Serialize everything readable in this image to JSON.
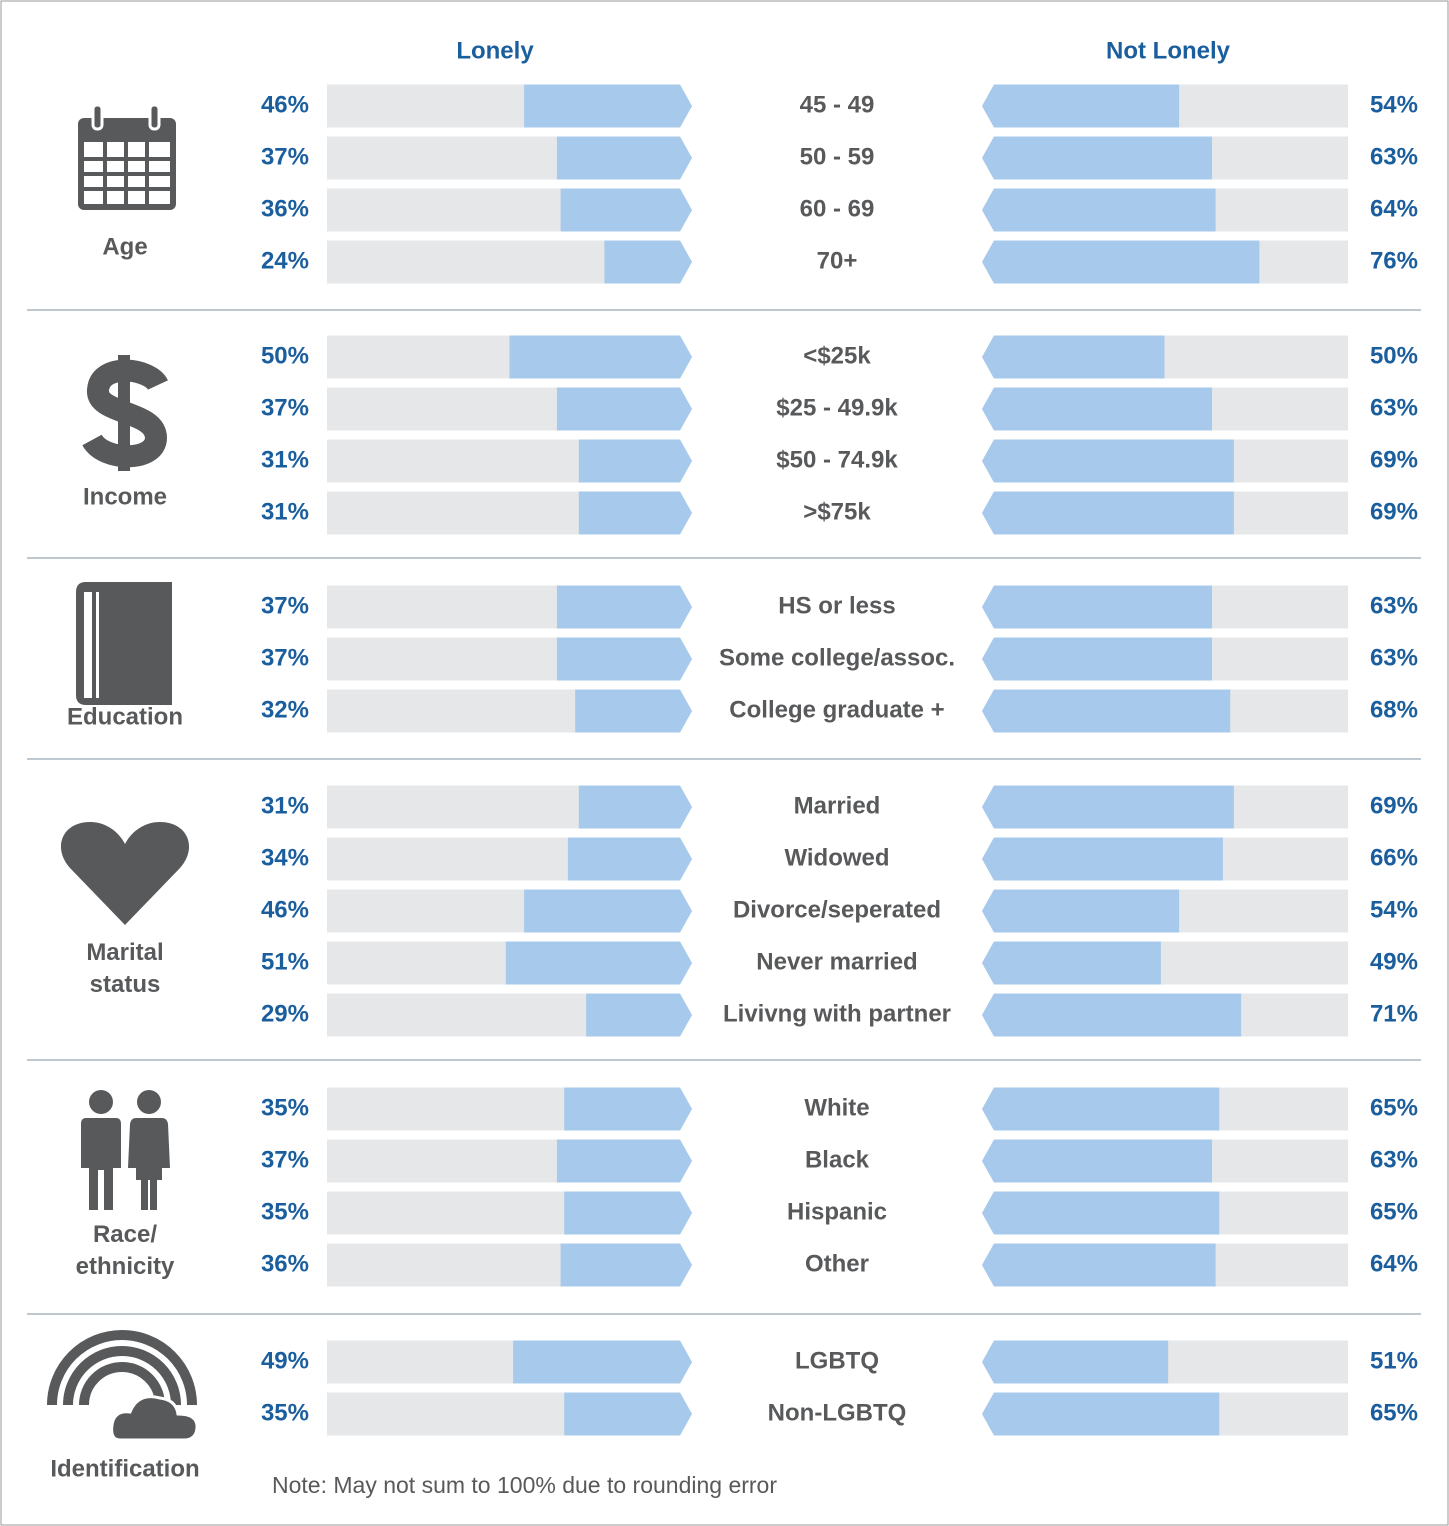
{
  "chart_data": {
    "type": "paired-bar",
    "xlim": [
      0,
      100
    ],
    "series": [
      {
        "name": "Lonely",
        "color": "#a7c9eb"
      },
      {
        "name": "Not Lonely",
        "color": "#a7c9eb"
      }
    ],
    "track_color": "#e6e7e8",
    "note": "Note: May not sum to 100% due to rounding error",
    "groups": [
      {
        "label": "Age",
        "categories": [
          "45 - 49",
          "50 - 59",
          "60 - 69",
          "70+"
        ],
        "lonely": [
          46,
          37,
          36,
          24
        ],
        "lonely_labels": [
          "46%",
          "37%",
          "36%",
          "24%"
        ],
        "not_lonely": [
          54,
          63,
          64,
          76
        ],
        "not_lonely_labels": [
          "54%",
          "63%",
          "64%",
          "76%"
        ]
      },
      {
        "label": "Income",
        "categories": [
          "<$25k",
          "$25 - 49.9k",
          "$50 - 74.9k",
          ">$75k"
        ],
        "lonely": [
          50,
          37,
          31,
          31
        ],
        "lonely_labels": [
          "50%",
          "37%",
          "31%",
          "31%"
        ],
        "not_lonely": [
          50,
          63,
          69,
          69
        ],
        "not_lonely_labels": [
          "50%",
          "63%",
          "69%",
          "69%"
        ]
      },
      {
        "label": "Education",
        "categories": [
          "HS or less",
          "Some college/assoc.",
          "College graduate +"
        ],
        "lonely": [
          37,
          37,
          32
        ],
        "lonely_labels": [
          "37%",
          "37%",
          "32%"
        ],
        "not_lonely": [
          63,
          63,
          68
        ],
        "not_lonely_labels": [
          "63%",
          "63%",
          "68%"
        ]
      },
      {
        "label": "Marital\nstatus",
        "categories": [
          "Married",
          "Widowed",
          "Divorce/seperated",
          "Never married",
          "Livivng with partner"
        ],
        "lonely": [
          31,
          34,
          46,
          51,
          29
        ],
        "lonely_labels": [
          "31%",
          "34%",
          "46%",
          "51%",
          "29%"
        ],
        "not_lonely": [
          69,
          66,
          54,
          49,
          71
        ],
        "not_lonely_labels": [
          "69%",
          "66%",
          "54%",
          "49%",
          "71%"
        ]
      },
      {
        "label": "Race/\nethnicity",
        "categories": [
          "White",
          "Black",
          "Hispanic",
          "Other"
        ],
        "lonely": [
          35,
          37,
          35,
          36
        ],
        "lonely_labels": [
          "35%",
          "37%",
          "35%",
          "36%"
        ],
        "not_lonely": [
          65,
          63,
          65,
          64
        ],
        "not_lonely_labels": [
          "65%",
          "63%",
          "65%",
          "64%"
        ]
      },
      {
        "label": "Identification",
        "categories": [
          "LGBTQ",
          "Non-LGBTQ"
        ],
        "lonely": [
          49,
          35
        ],
        "lonely_labels": [
          "49%",
          "35%"
        ],
        "not_lonely": [
          51,
          65
        ],
        "not_lonely_labels": [
          "51%",
          "65%"
        ]
      }
    ]
  }
}
